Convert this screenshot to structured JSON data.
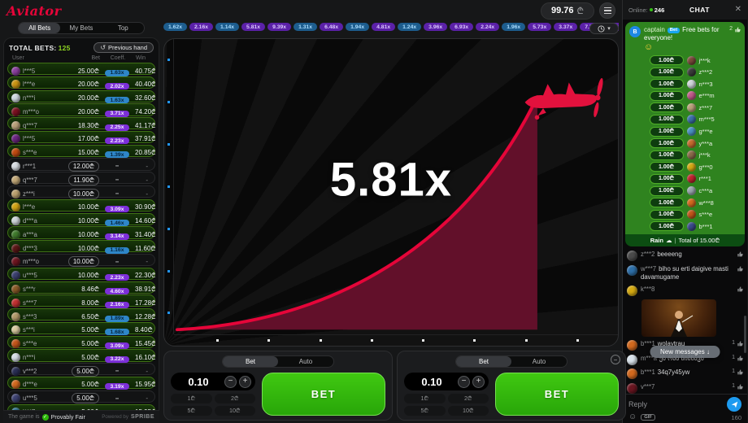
{
  "colors": {
    "accent_red": "#e50539",
    "curve_fill": "#62102a",
    "bet_green": "#30b80b",
    "chip_blue": "#2e86c8",
    "chip_purple": "#7c2fd8",
    "won_row_green": "#17350a",
    "captain_green": "#2f831f",
    "send_blue": "#1d9bf0"
  },
  "header": {
    "logo": "Aviator",
    "balance": "99.76",
    "currency": "₾"
  },
  "chat_header": {
    "online_label": "Online:",
    "online_count": "246",
    "title": "CHAT",
    "close_icon": "✕"
  },
  "sidebar": {
    "tabs": [
      {
        "label": "All Bets"
      },
      {
        "label": "My Bets"
      },
      {
        "label": "Top"
      }
    ],
    "total_bets_label": "TOTAL BETS:",
    "total_bets_count": "125",
    "previous_hand_label": "Previous hand",
    "history_icon": "↺",
    "columns": {
      "user": "User",
      "bet": "Bet",
      "coeff": "Coeff.",
      "win": "Win"
    },
    "bets": [
      {
        "user": "l***5",
        "bet": "25.00₾",
        "coeff": "1.63x",
        "win": "40.75₾",
        "state": "won",
        "chip": "blue",
        "avatar": "#8a3f9e"
      },
      {
        "user": "l***e",
        "bet": "20.00₾",
        "coeff": "2.02x",
        "win": "40.40₾",
        "state": "won",
        "chip": "purple",
        "avatar": "#c99412"
      },
      {
        "user": "n***i",
        "bet": "20.00₾",
        "coeff": "1.63x",
        "win": "32.60₾",
        "state": "won",
        "chip": "blue",
        "avatar": "#cfd8e0"
      },
      {
        "user": "m***o",
        "bet": "20.00₾",
        "coeff": "3.71x",
        "win": "74.20₾",
        "state": "won",
        "chip": "purple",
        "avatar": "#7a1020"
      },
      {
        "user": "q***7",
        "bet": "18.30₾",
        "coeff": "2.25x",
        "win": "41.17₾",
        "state": "won",
        "chip": "purple",
        "avatar": "#b9a07a"
      },
      {
        "user": "l***5",
        "bet": "17.00₾",
        "coeff": "2.23x",
        "win": "37.91₾",
        "state": "won",
        "chip": "purple",
        "avatar": "#6a2580"
      },
      {
        "user": "s***e",
        "bet": "15.00₾",
        "coeff": "1.39x",
        "win": "20.85₾",
        "state": "won",
        "chip": "blue",
        "avatar": "#c14a10"
      },
      {
        "user": "r***1",
        "bet": "12.00₾",
        "coeff": "-",
        "win": "-",
        "state": "pending",
        "chip": "",
        "avatar": "#d8dde2"
      },
      {
        "user": "q***7",
        "bet": "11.90₾",
        "coeff": "-",
        "win": "-",
        "state": "pending",
        "chip": "",
        "avatar": "#c2a877"
      },
      {
        "user": "z***i",
        "bet": "10.00₾",
        "coeff": "-",
        "win": "-",
        "state": "pending",
        "chip": "",
        "avatar": "#bba06e"
      },
      {
        "user": "l***e",
        "bet": "10.00₾",
        "coeff": "3.09x",
        "win": "30.90₾",
        "state": "won",
        "chip": "purple",
        "avatar": "#d2a414"
      },
      {
        "user": "d***a",
        "bet": "10.00₾",
        "coeff": "1.46x",
        "win": "14.60₾",
        "state": "won",
        "chip": "blue",
        "avatar": "#cdd3d8"
      },
      {
        "user": "a***a",
        "bet": "10.00₾",
        "coeff": "3.14x",
        "win": "31.40₾",
        "state": "won",
        "chip": "purple",
        "avatar": "#3f7a2c"
      },
      {
        "user": "d***3",
        "bet": "10.00₾",
        "coeff": "1.16x",
        "win": "11.60₾",
        "state": "won",
        "chip": "blue",
        "avatar": "#5a1616"
      },
      {
        "user": "m***o",
        "bet": "10.00₾",
        "coeff": "-",
        "win": "-",
        "state": "pending",
        "chip": "",
        "avatar": "#6e1520"
      },
      {
        "user": "u***5",
        "bet": "10.00₾",
        "coeff": "2.23x",
        "win": "22.30₾",
        "state": "won",
        "chip": "purple",
        "avatar": "#3a3f6e"
      },
      {
        "user": "s***r",
        "bet": "8.46₾",
        "coeff": "4.60x",
        "win": "38.91₾",
        "state": "won",
        "chip": "purple",
        "avatar": "#8a5a28"
      },
      {
        "user": "s***7",
        "bet": "8.00₾",
        "coeff": "2.16x",
        "win": "17.28₾",
        "state": "won",
        "chip": "purple",
        "avatar": "#c03030"
      },
      {
        "user": "s***3",
        "bet": "6.50₾",
        "coeff": "1.89x",
        "win": "12.28₾",
        "state": "won",
        "chip": "blue",
        "avatar": "#b39a6a"
      },
      {
        "user": "s***i",
        "bet": "5.00₾",
        "coeff": "1.68x",
        "win": "8.40₾",
        "state": "won",
        "chip": "blue",
        "avatar": "#d8c9a0"
      },
      {
        "user": "s***e",
        "bet": "5.00₾",
        "coeff": "3.09x",
        "win": "15.45₾",
        "state": "won",
        "chip": "purple",
        "avatar": "#c2551a"
      },
      {
        "user": "n***i",
        "bet": "5.00₾",
        "coeff": "3.22x",
        "win": "16.10₾",
        "state": "won",
        "chip": "purple",
        "avatar": "#d5dde5"
      },
      {
        "user": "v***2",
        "bet": "5.00₾",
        "coeff": "-",
        "win": "-",
        "state": "pending",
        "chip": "",
        "avatar": "#2a2f55"
      },
      {
        "user": "d***e",
        "bet": "5.00₾",
        "coeff": "3.19x",
        "win": "15.95₾",
        "state": "won",
        "chip": "purple",
        "avatar": "#d2691e"
      },
      {
        "user": "u***5",
        "bet": "5.00₾",
        "coeff": "-",
        "win": "-",
        "state": "pending",
        "chip": "",
        "avatar": "#3c4170"
      },
      {
        "user": "l***7",
        "bet": "5.00₾",
        "coeff": "3.19x",
        "win": "15.95₾",
        "state": "won",
        "chip": "purple",
        "avatar": "#2e6f8e"
      }
    ],
    "footer": {
      "prefix": "The game is",
      "check_icon": "✓",
      "provably_fair": "Provably Fair",
      "powered_by": "Powered by",
      "brand": "SPRIBE"
    }
  },
  "history": {
    "chips": [
      {
        "value": "1.62x",
        "color": "blue"
      },
      {
        "value": "2.16x",
        "color": "purple"
      },
      {
        "value": "1.14x",
        "color": "blue"
      },
      {
        "value": "5.81x",
        "color": "purple"
      },
      {
        "value": "9.39x",
        "color": "purple"
      },
      {
        "value": "1.31x",
        "color": "blue"
      },
      {
        "value": "6.48x",
        "color": "purple"
      },
      {
        "value": "1.94x",
        "color": "blue"
      },
      {
        "value": "4.81x",
        "color": "purple"
      },
      {
        "value": "1.24x",
        "color": "blue"
      },
      {
        "value": "3.96x",
        "color": "purple"
      },
      {
        "value": "6.93x",
        "color": "purple"
      },
      {
        "value": "2.24x",
        "color": "purple"
      },
      {
        "value": "1.96x",
        "color": "blue"
      },
      {
        "value": "5.73x",
        "color": "purple"
      },
      {
        "value": "3.37x",
        "color": "purple"
      },
      {
        "value": "7.74x",
        "color": "purple"
      },
      {
        "value": "2.08x",
        "color": "purple"
      },
      {
        "value": "7.06x",
        "color": "purple"
      },
      {
        "value": "2.17x",
        "color": "purple"
      }
    ],
    "dropdown_caret": "▾"
  },
  "game": {
    "multiplier": "5.81x"
  },
  "bet_panel": {
    "tabs": {
      "bet": "Bet",
      "auto": "Auto"
    },
    "amount": "0.10",
    "minus": "−",
    "plus": "+",
    "quick_amounts": [
      "1₾",
      "2₾",
      "5₾",
      "10₾"
    ],
    "bet_button": "BET",
    "collapse": "−"
  },
  "chat": {
    "captain": {
      "initial": "B",
      "name": "captain",
      "badge": "Bet",
      "text": "Free bets for everyone!",
      "emoji": "☺",
      "likes": "2"
    },
    "free_bets": [
      {
        "amount": "1.00₾",
        "user": "j***k",
        "avatar": "#7a4a3a"
      },
      {
        "amount": "1.00₾",
        "user": "z***2",
        "avatar": "#3a3a3a"
      },
      {
        "amount": "1.00₾",
        "user": "n***3",
        "avatar": "#cfd5da"
      },
      {
        "amount": "1.00₾",
        "user": "e***m",
        "avatar": "#c05a8a"
      },
      {
        "amount": "1.00₾",
        "user": "z***7",
        "avatar": "#b9a07a"
      },
      {
        "amount": "1.00₾",
        "user": "m***5",
        "avatar": "#3a6fa8"
      },
      {
        "amount": "1.00₾",
        "user": "g***e",
        "avatar": "#4a90c2"
      },
      {
        "amount": "1.00₾",
        "user": "y***a",
        "avatar": "#c46a2e"
      },
      {
        "amount": "1.00₾",
        "user": "j***k",
        "avatar": "#8a6a4a"
      },
      {
        "amount": "1.00₾",
        "user": "g***0",
        "avatar": "#d4a912"
      },
      {
        "amount": "1.00₾",
        "user": "r***1",
        "avatar": "#c0242e"
      },
      {
        "amount": "1.00₾",
        "user": "c***a",
        "avatar": "#9aa5ad"
      },
      {
        "amount": "1.00₾",
        "user": "w***8",
        "avatar": "#d2691e"
      },
      {
        "amount": "1.00₾",
        "user": "s***e",
        "avatar": "#c2551a"
      },
      {
        "amount": "1.00₾",
        "user": "b***1",
        "avatar": "#3a4a8a"
      }
    ],
    "rain": {
      "label": "Rain",
      "cloud_icon": "☁",
      "separator": "|",
      "total": "Total of 15.00₾"
    },
    "messages": [
      {
        "user": "z***2",
        "text": "beeeeng",
        "likes": "",
        "avatar": "#4a4a4a",
        "gif": false
      },
      {
        "user": "w***7",
        "text": "biho su erti daigive masti davamugame",
        "likes": "",
        "avatar": "#2e6fa8",
        "gif": false
      },
      {
        "user": "k***8",
        "text": "",
        "likes": "",
        "avatar": "#d4a912",
        "gif": true
      },
      {
        "user": "b***1",
        "text": "wolaytrau",
        "likes": "1",
        "avatar": "#d2691e",
        "gif": false
      },
      {
        "user": "m***a",
        "text": "ეს რას ნიშნავს",
        "likes": "1",
        "avatar": "#d8e2ea",
        "gif": false
      },
      {
        "user": "b***1",
        "text": "34q7y45yw",
        "likes": "1",
        "avatar": "#d2691e",
        "gif": false
      },
      {
        "user": "v***7",
        "text": "",
        "likes": "1",
        "avatar": "#6a1520",
        "gif": "partial"
      }
    ],
    "new_messages": "New messages",
    "new_messages_arrow": "↓",
    "reply_placeholder": "Reply",
    "emoji_icon": "☺",
    "gif_label": "GIF",
    "char_count": "160"
  }
}
